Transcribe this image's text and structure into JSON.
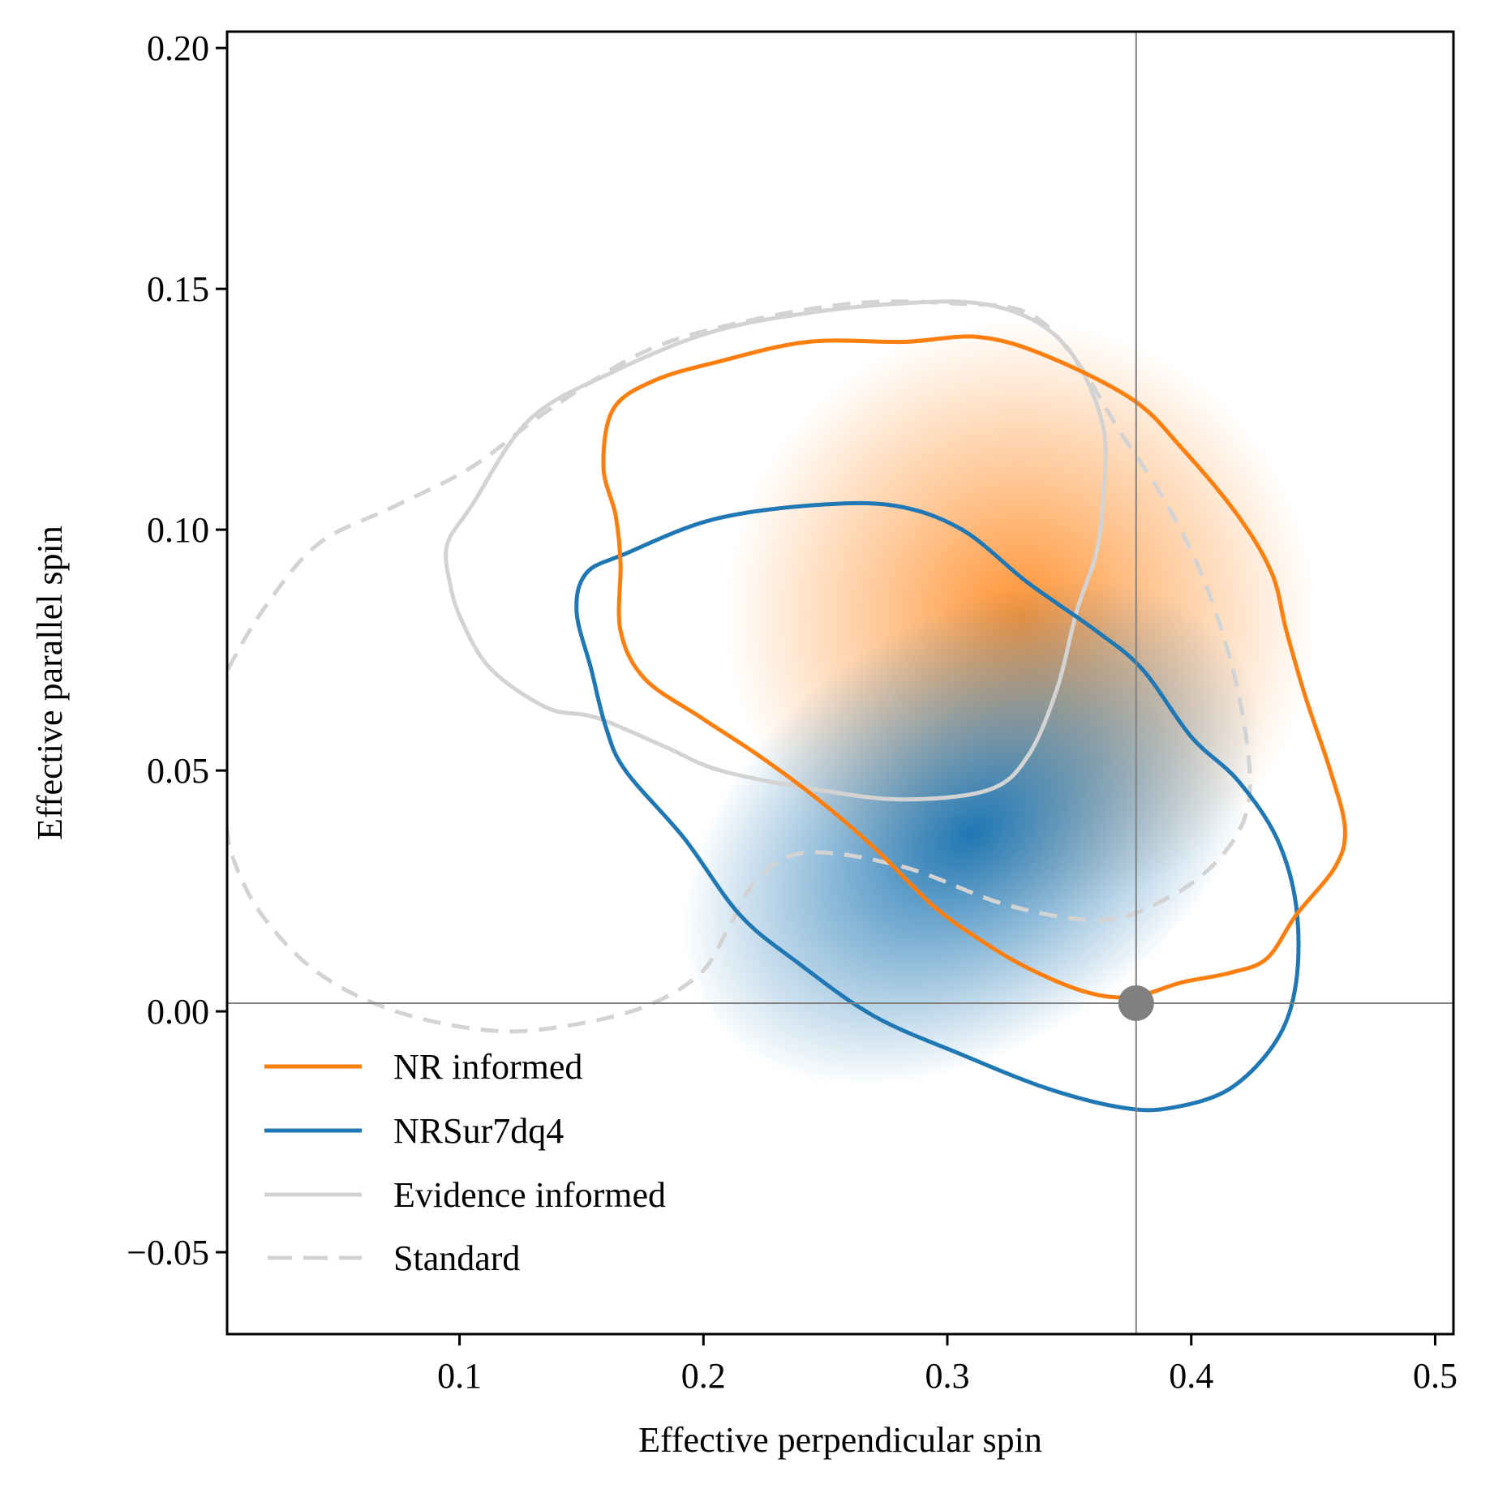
{
  "chart_data": {
    "type": "scatter",
    "subtype": "2d-density-contour",
    "title": "",
    "xlabel": "Effective perpendicular spin",
    "ylabel": "Effective parallel spin",
    "xlim": [
      0.0047,
      0.5075
    ],
    "ylim": [
      -0.067,
      0.2034
    ],
    "xticks": [
      0.1,
      0.2,
      0.3,
      0.4,
      0.5
    ],
    "xtick_labels": [
      "0.1",
      "0.2",
      "0.3",
      "0.4",
      "0.5"
    ],
    "yticks": [
      -0.05,
      0.0,
      0.05,
      0.1,
      0.15,
      0.2
    ],
    "ytick_labels": [
      "−0.05",
      "0.00",
      "0.05",
      "0.10",
      "0.15",
      "0.20"
    ],
    "grid": false,
    "legend_position": "lower-left",
    "reference_point": {
      "x": 0.3774,
      "y": 0.0017,
      "color": "#808080"
    },
    "reference_lines": {
      "vertical_x": 0.3774,
      "horizontal_y": 0.0017,
      "color": "#808080"
    },
    "densities": [
      {
        "name": "NR informed",
        "color": "#ff7f0e",
        "center": [
          0.33,
          0.082
        ],
        "spread": [
          0.055,
          0.028
        ],
        "angle_deg": -30
      },
      {
        "name": "NRSur7dq4",
        "color": "#1f77b4",
        "center": [
          0.31,
          0.037
        ],
        "spread": [
          0.06,
          0.02
        ],
        "angle_deg": -35
      }
    ],
    "series": [
      {
        "name": "NR informed",
        "color": "#ff7f0e",
        "style": "solid",
        "closed": true,
        "points": [
          [
            0.159,
            0.113
          ],
          [
            0.163,
            0.125
          ],
          [
            0.18,
            0.131
          ],
          [
            0.207,
            0.135
          ],
          [
            0.243,
            0.139
          ],
          [
            0.282,
            0.139
          ],
          [
            0.313,
            0.14
          ],
          [
            0.341,
            0.136
          ],
          [
            0.376,
            0.127
          ],
          [
            0.396,
            0.117
          ],
          [
            0.419,
            0.103
          ],
          [
            0.433,
            0.091
          ],
          [
            0.439,
            0.079
          ],
          [
            0.447,
            0.065
          ],
          [
            0.457,
            0.05
          ],
          [
            0.463,
            0.038
          ],
          [
            0.459,
            0.03
          ],
          [
            0.443,
            0.02
          ],
          [
            0.431,
            0.011
          ],
          [
            0.416,
            0.008
          ],
          [
            0.396,
            0.006
          ],
          [
            0.376,
            0.003
          ],
          [
            0.357,
            0.004
          ],
          [
            0.333,
            0.009
          ],
          [
            0.313,
            0.015
          ],
          [
            0.294,
            0.022
          ],
          [
            0.27,
            0.034
          ],
          [
            0.247,
            0.044
          ],
          [
            0.223,
            0.053
          ],
          [
            0.199,
            0.061
          ],
          [
            0.176,
            0.069
          ],
          [
            0.166,
            0.079
          ],
          [
            0.166,
            0.093
          ],
          [
            0.164,
            0.103
          ]
        ]
      },
      {
        "name": "NRSur7dq4",
        "color": "#1f77b4",
        "style": "solid",
        "closed": true,
        "points": [
          [
            0.148,
            0.083
          ],
          [
            0.152,
            0.091
          ],
          [
            0.168,
            0.095
          ],
          [
            0.203,
            0.102
          ],
          [
            0.243,
            0.105
          ],
          [
            0.278,
            0.105
          ],
          [
            0.306,
            0.1
          ],
          [
            0.333,
            0.089
          ],
          [
            0.361,
            0.079
          ],
          [
            0.38,
            0.071
          ],
          [
            0.4,
            0.057
          ],
          [
            0.419,
            0.048
          ],
          [
            0.435,
            0.036
          ],
          [
            0.443,
            0.022
          ],
          [
            0.443,
            0.006
          ],
          [
            0.435,
            -0.006
          ],
          [
            0.416,
            -0.016
          ],
          [
            0.392,
            -0.02
          ],
          [
            0.372,
            -0.02
          ],
          [
            0.341,
            -0.016
          ],
          [
            0.306,
            -0.009
          ],
          [
            0.27,
            -0.001
          ],
          [
            0.239,
            0.01
          ],
          [
            0.215,
            0.02
          ],
          [
            0.192,
            0.036
          ],
          [
            0.168,
            0.05
          ],
          [
            0.16,
            0.059
          ],
          [
            0.154,
            0.071
          ]
        ]
      },
      {
        "name": "Evidence informed",
        "color": "#d3d3d3",
        "style": "solid",
        "closed": true,
        "points": [
          [
            0.095,
            0.097
          ],
          [
            0.105,
            0.105
          ],
          [
            0.129,
            0.123
          ],
          [
            0.164,
            0.133
          ],
          [
            0.203,
            0.141
          ],
          [
            0.243,
            0.145
          ],
          [
            0.282,
            0.147
          ],
          [
            0.313,
            0.147
          ],
          [
            0.337,
            0.143
          ],
          [
            0.353,
            0.135
          ],
          [
            0.364,
            0.121
          ],
          [
            0.364,
            0.107
          ],
          [
            0.361,
            0.095
          ],
          [
            0.353,
            0.083
          ],
          [
            0.345,
            0.067
          ],
          [
            0.333,
            0.053
          ],
          [
            0.317,
            0.046
          ],
          [
            0.282,
            0.044
          ],
          [
            0.247,
            0.046
          ],
          [
            0.207,
            0.05
          ],
          [
            0.184,
            0.055
          ],
          [
            0.156,
            0.061
          ],
          [
            0.136,
            0.063
          ],
          [
            0.113,
            0.071
          ],
          [
            0.101,
            0.081
          ],
          [
            0.096,
            0.089
          ]
        ]
      },
      {
        "name": "Standard",
        "color": "#d3d3d3",
        "style": "dashed",
        "closed": true,
        "points": [
          [
            -0.005,
            0.06
          ],
          [
            0.003,
            0.069
          ],
          [
            0.019,
            0.083
          ],
          [
            0.042,
            0.097
          ],
          [
            0.074,
            0.105
          ],
          [
            0.105,
            0.113
          ],
          [
            0.137,
            0.125
          ],
          [
            0.176,
            0.137
          ],
          [
            0.215,
            0.143
          ],
          [
            0.262,
            0.147
          ],
          [
            0.302,
            0.147
          ],
          [
            0.333,
            0.145
          ],
          [
            0.353,
            0.135
          ],
          [
            0.37,
            0.121
          ],
          [
            0.388,
            0.107
          ],
          [
            0.404,
            0.091
          ],
          [
            0.416,
            0.073
          ],
          [
            0.423,
            0.055
          ],
          [
            0.423,
            0.042
          ],
          [
            0.412,
            0.032
          ],
          [
            0.392,
            0.024
          ],
          [
            0.364,
            0.019
          ],
          [
            0.325,
            0.022
          ],
          [
            0.282,
            0.03
          ],
          [
            0.243,
            0.033
          ],
          [
            0.223,
            0.028
          ],
          [
            0.211,
            0.018
          ],
          [
            0.199,
            0.008
          ],
          [
            0.176,
            0.001
          ],
          [
            0.144,
            -0.003
          ],
          [
            0.113,
            -0.004
          ],
          [
            0.074,
            0.0
          ],
          [
            0.042,
            0.008
          ],
          [
            0.019,
            0.02
          ],
          [
            0.007,
            0.032
          ],
          [
            0.003,
            0.042
          ],
          [
            -0.005,
            0.05
          ]
        ]
      }
    ]
  },
  "legend": {
    "items": [
      {
        "label": "NR informed",
        "color": "#ff7f0e",
        "style": "solid"
      },
      {
        "label": "NRSur7dq4",
        "color": "#1f77b4",
        "style": "solid"
      },
      {
        "label": "Evidence informed",
        "color": "#d3d3d3",
        "style": "solid"
      },
      {
        "label": "Standard",
        "color": "#d3d3d3",
        "style": "dashed"
      }
    ]
  }
}
